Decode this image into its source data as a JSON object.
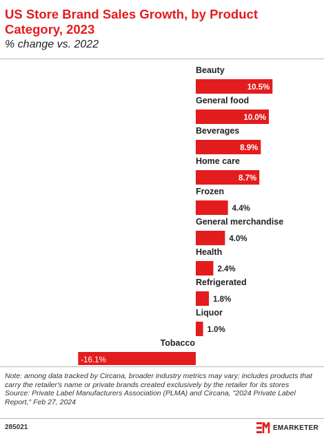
{
  "header": {
    "title": "US Store Brand Sales Growth, by Product Category, 2023",
    "subtitle": "% change vs. 2022"
  },
  "chart_data": {
    "type": "bar",
    "orientation": "horizontal",
    "categories": [
      "Beauty",
      "General food",
      "Beverages",
      "Home care",
      "Frozen",
      "General merchandise",
      "Health",
      "Refrigerated",
      "Liquor",
      "Tobacco"
    ],
    "values": [
      10.5,
      10.0,
      8.9,
      8.7,
      4.4,
      4.0,
      2.4,
      1.8,
      1.0,
      -16.1
    ],
    "value_labels": [
      "10.5%",
      "10.0%",
      "8.9%",
      "8.7%",
      "4.4%",
      "4.0%",
      "2.4%",
      "1.8%",
      "1.0%",
      "-16.1%"
    ],
    "unit": "%",
    "xlim": [
      -16.1,
      10.5
    ],
    "bar_color": "#e31c1e",
    "grid": false
  },
  "footer": {
    "note": "Note: among data tracked by Circana, broader industry metrics may vary; includes products that carry the retailer's name or private brands created exclusively by the retailer for its stores",
    "source": "Source: Private Label Manufacturers Association (PLMA) and Circana, \"2024 Private Label Report,\" Feb 27, 2024",
    "chart_id": "285021",
    "brand": "EMARKETER",
    "brand_color": "#e31c1e"
  }
}
